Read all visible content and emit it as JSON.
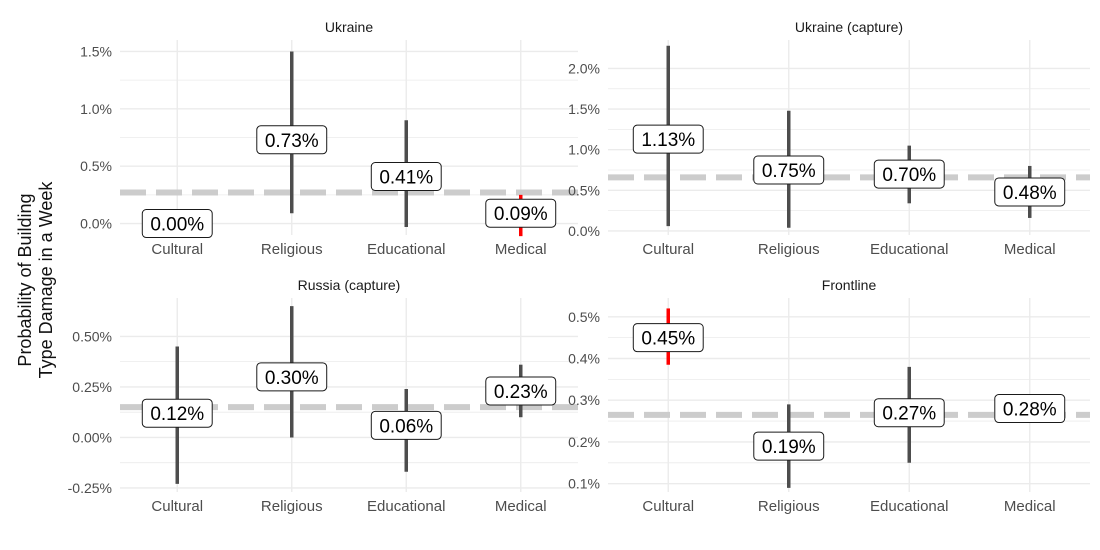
{
  "y_axis_label": [
    "Probability of Building",
    "Type Damage in a Week"
  ],
  "colors": {
    "bar_normal": "#4d4d4d",
    "bar_highlight": "#ff0000",
    "reference_line": "#cccccc",
    "grid": "#ebebeb",
    "tick_text": "#4d4d4d"
  },
  "chart_data": [
    {
      "type": "errorbar",
      "title": "Ukraine",
      "categories": [
        "Cultural",
        "Religious",
        "Educational",
        "Medical"
      ],
      "ylim": [
        -0.1,
        1.6
      ],
      "yticks": [
        0.0,
        0.5,
        1.0,
        1.5
      ],
      "ytick_labels": [
        "0.0%",
        "0.5%",
        "1.0%",
        "1.5%"
      ],
      "reference": 0.27,
      "points": [
        {
          "category": "Cultural",
          "estimate": 0.0,
          "low": null,
          "high": null,
          "label": "0.00%",
          "highlight": false
        },
        {
          "category": "Religious",
          "estimate": 0.73,
          "low": 0.09,
          "high": 1.5,
          "label": "0.73%",
          "highlight": false
        },
        {
          "category": "Educational",
          "estimate": 0.41,
          "low": -0.03,
          "high": 0.9,
          "label": "0.41%",
          "highlight": false
        },
        {
          "category": "Medical",
          "estimate": 0.09,
          "low": -0.11,
          "high": 0.25,
          "label": "0.09%",
          "highlight": true
        }
      ]
    },
    {
      "type": "errorbar",
      "title": "Ukraine (capture)",
      "categories": [
        "Cultural",
        "Religious",
        "Educational",
        "Medical"
      ],
      "ylim": [
        -0.05,
        2.35
      ],
      "yticks": [
        0.0,
        0.5,
        1.0,
        1.5,
        2.0
      ],
      "ytick_labels": [
        "0.0%",
        "0.5%",
        "1.0%",
        "1.5%",
        "2.0%"
      ],
      "reference": 0.66,
      "points": [
        {
          "category": "Cultural",
          "estimate": 1.13,
          "low": 0.06,
          "high": 2.28,
          "label": "1.13%",
          "highlight": false
        },
        {
          "category": "Religious",
          "estimate": 0.75,
          "low": 0.04,
          "high": 1.48,
          "label": "0.75%",
          "highlight": false
        },
        {
          "category": "Educational",
          "estimate": 0.7,
          "low": 0.34,
          "high": 1.05,
          "label": "0.70%",
          "highlight": false
        },
        {
          "category": "Medical",
          "estimate": 0.48,
          "low": 0.16,
          "high": 0.8,
          "label": "0.48%",
          "highlight": false
        }
      ]
    },
    {
      "type": "errorbar",
      "title": "Russia (capture)",
      "categories": [
        "Cultural",
        "Religious",
        "Educational",
        "Medical"
      ],
      "ylim": [
        -0.27,
        0.69
      ],
      "yticks": [
        -0.25,
        0.0,
        0.25,
        0.5
      ],
      "ytick_labels": [
        "-0.25%",
        "0.00%",
        "0.25%",
        "0.50%"
      ],
      "reference": 0.15,
      "points": [
        {
          "category": "Cultural",
          "estimate": 0.12,
          "low": -0.23,
          "high": 0.45,
          "label": "0.12%",
          "highlight": false
        },
        {
          "category": "Religious",
          "estimate": 0.3,
          "low": 0.0,
          "high": 0.65,
          "label": "0.30%",
          "highlight": false
        },
        {
          "category": "Educational",
          "estimate": 0.06,
          "low": -0.17,
          "high": 0.24,
          "label": "0.06%",
          "highlight": false
        },
        {
          "category": "Medical",
          "estimate": 0.23,
          "low": 0.1,
          "high": 0.36,
          "label": "0.23%",
          "highlight": false
        }
      ]
    },
    {
      "type": "errorbar",
      "title": "Frontline",
      "categories": [
        "Cultural",
        "Religious",
        "Educational",
        "Medical"
      ],
      "ylim": [
        0.08,
        0.545
      ],
      "yticks": [
        0.1,
        0.2,
        0.3,
        0.4,
        0.5
      ],
      "ytick_labels": [
        "0.1%",
        "0.2%",
        "0.3%",
        "0.4%",
        "0.5%"
      ],
      "reference": 0.265,
      "points": [
        {
          "category": "Cultural",
          "estimate": 0.45,
          "low": 0.385,
          "high": 0.52,
          "label": "0.45%",
          "highlight": true
        },
        {
          "category": "Religious",
          "estimate": 0.19,
          "low": 0.09,
          "high": 0.29,
          "label": "0.19%",
          "highlight": false
        },
        {
          "category": "Educational",
          "estimate": 0.27,
          "low": 0.15,
          "high": 0.38,
          "label": "0.27%",
          "highlight": false
        },
        {
          "category": "Medical",
          "estimate": 0.28,
          "low": null,
          "high": null,
          "label": "0.28%",
          "highlight": false
        }
      ]
    }
  ]
}
